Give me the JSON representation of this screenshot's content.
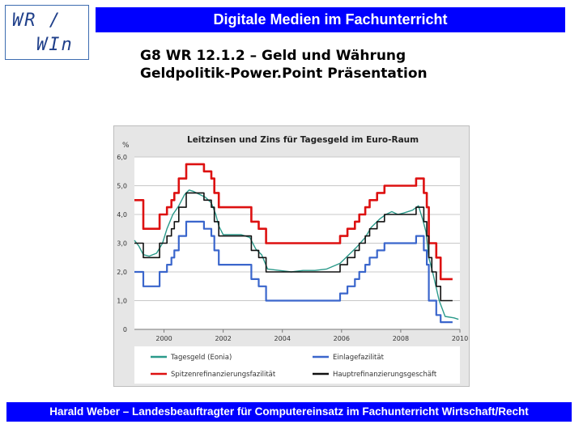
{
  "logo": {
    "line1": "WR /",
    "line2": "WIn"
  },
  "header": {
    "title": "Digitale Medien im Fachunterricht"
  },
  "subtitle": {
    "line1": "G8 WR 12.1.2 – Geld und Währung",
    "line2": "Geldpolitik-Power.Point Präsentation"
  },
  "footer": {
    "text": "Harald Weber – Landesbeauftragter für Computereinsatz im Fachunterricht Wirtschaft/Recht"
  },
  "colors": {
    "tagesgeld": "#2a9a8a",
    "einlage": "#3a66cc",
    "spitzen": "#dd1111",
    "haupt": "#111111",
    "title_bar": "#0000ff"
  },
  "chart_data": {
    "type": "line",
    "title": "Leitzinsen und Zins für Tagesgeld im Euro-Raum",
    "ylabel": "%",
    "xlabel": "",
    "xlim": [
      1999,
      2010
    ],
    "ylim": [
      0,
      6
    ],
    "yticks": [
      "0",
      "1,0",
      "2,0",
      "3,0",
      "4,0",
      "5,0",
      "6,0"
    ],
    "yticks_values": [
      0,
      1,
      2,
      3,
      4,
      5,
      6
    ],
    "xticks": [
      "2000",
      "2002",
      "2004",
      "2006",
      "2008",
      "2010"
    ],
    "xticks_values": [
      2000,
      2002,
      2004,
      2006,
      2008,
      2010
    ],
    "grid": true,
    "legend_position": "bottom",
    "series": [
      {
        "name": "Tagesgeld (Eonia)",
        "key": "tagesgeld",
        "x": [
          1999.0,
          1999.15,
          1999.3,
          1999.5,
          1999.75,
          1999.95,
          2000.1,
          2000.3,
          2000.5,
          2000.7,
          2000.85,
          2001.0,
          2001.2,
          2001.4,
          2001.6,
          2001.75,
          2001.85,
          2002.0,
          2002.3,
          2002.6,
          2002.9,
          2003.1,
          2003.3,
          2003.5,
          2003.9,
          2004.3,
          2004.7,
          2005.1,
          2005.5,
          2005.95,
          2006.2,
          2006.5,
          2006.8,
          2007.0,
          2007.3,
          2007.5,
          2007.7,
          2007.9,
          2008.1,
          2008.4,
          2008.6,
          2008.75,
          2008.85,
          2008.95,
          2009.1,
          2009.3,
          2009.5,
          2009.8,
          2009.95
        ],
        "y": [
          3.1,
          2.9,
          2.6,
          2.55,
          2.65,
          3.0,
          3.5,
          4.0,
          4.3,
          4.7,
          4.85,
          4.8,
          4.7,
          4.6,
          4.4,
          4.0,
          3.6,
          3.3,
          3.3,
          3.3,
          3.2,
          2.8,
          2.6,
          2.1,
          2.05,
          2.0,
          2.05,
          2.05,
          2.1,
          2.3,
          2.55,
          2.85,
          3.2,
          3.55,
          3.85,
          4.0,
          4.1,
          4.0,
          4.05,
          4.15,
          4.3,
          3.8,
          3.4,
          2.5,
          1.9,
          1.0,
          0.45,
          0.4,
          0.35
        ]
      },
      {
        "name": "Einlagefazilität",
        "key": "einlage",
        "x": [
          1999.0,
          1999.1,
          1999.3,
          1999.85,
          2000.1,
          2000.25,
          2000.35,
          2000.5,
          2000.75,
          2001.35,
          2001.6,
          2001.7,
          2001.85,
          2002.95,
          2003.2,
          2003.45,
          2005.95,
          2006.2,
          2006.45,
          2006.6,
          2006.8,
          2006.95,
          2007.2,
          2007.45,
          2008.52,
          2008.78,
          2008.88,
          2008.95,
          2009.05,
          2009.2,
          2009.35
        ],
        "y": [
          2.0,
          2.0,
          1.5,
          2.0,
          2.25,
          2.5,
          2.75,
          3.25,
          3.75,
          3.5,
          3.25,
          2.75,
          2.25,
          1.75,
          1.5,
          1.0,
          1.25,
          1.5,
          1.75,
          2.0,
          2.25,
          2.5,
          2.75,
          3.0,
          3.25,
          2.75,
          2.25,
          1.0,
          1.0,
          0.5,
          0.25
        ]
      },
      {
        "name": "Spitzenrefinanzierungsfazilität",
        "key": "spitzen",
        "x": [
          1999.0,
          1999.03,
          1999.3,
          1999.85,
          2000.1,
          2000.25,
          2000.35,
          2000.5,
          2000.75,
          2001.35,
          2001.6,
          2001.7,
          2001.85,
          2002.95,
          2003.2,
          2003.45,
          2005.95,
          2006.2,
          2006.45,
          2006.6,
          2006.8,
          2006.95,
          2007.2,
          2007.45,
          2008.52,
          2008.78,
          2008.88,
          2008.95,
          2009.05,
          2009.2,
          2009.35
        ],
        "y": [
          4.5,
          4.5,
          3.5,
          4.0,
          4.25,
          4.5,
          4.75,
          5.25,
          5.75,
          5.5,
          5.25,
          4.75,
          4.25,
          3.75,
          3.5,
          3.0,
          3.25,
          3.5,
          3.75,
          4.0,
          4.25,
          4.5,
          4.75,
          5.0,
          5.25,
          4.75,
          4.25,
          3.0,
          3.0,
          2.5,
          1.75
        ]
      },
      {
        "name": "Hauptrefinanzierungsgeschäft",
        "key": "haupt",
        "x": [
          1999.0,
          1999.3,
          1999.85,
          2000.1,
          2000.25,
          2000.35,
          2000.5,
          2000.75,
          2001.35,
          2001.6,
          2001.7,
          2001.85,
          2002.95,
          2003.2,
          2003.45,
          2005.95,
          2006.2,
          2006.45,
          2006.6,
          2006.8,
          2006.95,
          2007.2,
          2007.45,
          2008.52,
          2008.78,
          2008.88,
          2008.95,
          2009.05,
          2009.2,
          2009.35
        ],
        "y": [
          3.0,
          2.5,
          3.0,
          3.25,
          3.5,
          3.75,
          4.25,
          4.75,
          4.5,
          4.25,
          3.75,
          3.25,
          2.75,
          2.5,
          2.0,
          2.25,
          2.5,
          2.75,
          3.0,
          3.25,
          3.5,
          3.75,
          4.0,
          4.25,
          3.75,
          3.25,
          2.5,
          2.0,
          1.5,
          1.0
        ]
      }
    ],
    "legend": [
      {
        "label": "Tagesgeld (Eonia)",
        "key": "tagesgeld"
      },
      {
        "label": "Einlagefazilität",
        "key": "einlage"
      },
      {
        "label": "Spitzenrefinanzierungsfazilität",
        "key": "spitzen"
      },
      {
        "label": "Hauptrefinanzierungsgeschäft",
        "key": "haupt"
      }
    ]
  }
}
